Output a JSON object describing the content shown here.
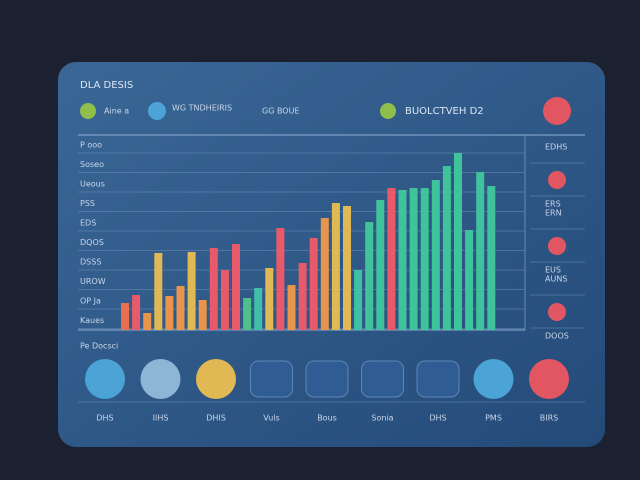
{
  "header": {
    "title": "DLA DESIS"
  },
  "toolbar": [
    "Aine a",
    "WG TNDHEIRIS",
    "GG BOUE",
    "BUOLCTVEH D2"
  ],
  "chart_data": {
    "type": "bar",
    "values": [
      27,
      35,
      17,
      77,
      34,
      44,
      78,
      30,
      82,
      60,
      86,
      32,
      42,
      62,
      102,
      45,
      67,
      92,
      112,
      127,
      124,
      60,
      108,
      130,
      142,
      140,
      142,
      142,
      150,
      164,
      177,
      100,
      158,
      144
    ],
    "colors": [
      "#e8704f",
      "#e85a6a",
      "#e8944a",
      "#e0b955",
      "#e8944a",
      "#e8944a",
      "#e0b955",
      "#e8944a",
      "#e85a6a",
      "#e85a6a",
      "#e85a6a",
      "#4fc08a",
      "#3fbfa6",
      "#e0b955",
      "#e85a6a",
      "#e8944a",
      "#e85a6a",
      "#e85a6a",
      "#e8944a",
      "#e0b955",
      "#e0b955",
      "#3fbfa6",
      "#3fc39a",
      "#3fc39a",
      "#e85a6a",
      "#3fc39a",
      "#3fc39a",
      "#3fc39a",
      "#3fc39a",
      "#3fc39a",
      "#3fc39a",
      "#3fc39a",
      "#3fc39a",
      "#3fc39a"
    ],
    "ylim": [
      0,
      200
    ],
    "row_labels": [
      "P ooo",
      "Soseo",
      "Ueous",
      "PSS",
      "EDS",
      "DQOS",
      "DSSS",
      "UROW",
      "OP Ja",
      "Kaues"
    ],
    "right_labels": [
      "EDHS",
      "ERS",
      "ERN",
      "EUS",
      "AUNS",
      "DOOS"
    ]
  },
  "section_label": "Pe Docsci",
  "actions": [
    "DHS",
    "IIHS",
    "DHIS",
    "Vuls",
    "Bous",
    "Sonia",
    "DHS",
    "PMS",
    "BIRS"
  ]
}
